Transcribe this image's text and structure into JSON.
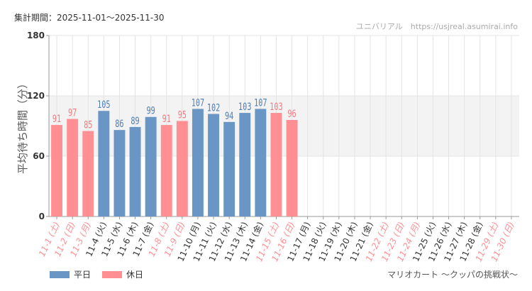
{
  "header": {
    "period_label": "集計期間：2025-11-01～2025-11-30"
  },
  "footer": {
    "attraction_name": "マリオカート ～クッパの挑戦状～"
  },
  "chart_data": {
    "type": "bar",
    "title": "",
    "watermark": "ユニバリアル　https://usjreal.asumirai.info",
    "ylabel": "平均待ち時間（分）",
    "xlabel": "",
    "ylim": [
      0,
      180
    ],
    "yticks": [
      0,
      60,
      120,
      180
    ],
    "shaded_band": [
      60,
      120
    ],
    "grid": true,
    "categories": [
      "11-1 (土)",
      "11-2 (日)",
      "11-3 (月)",
      "11-4 (火)",
      "11-5 (水)",
      "11-6 (木)",
      "11-7 (金)",
      "11-8 (土)",
      "11-9 (日)",
      "11-10 (月)",
      "11-11 (火)",
      "11-12 (水)",
      "11-13 (木)",
      "11-14 (金)",
      "11-15 (土)",
      "11-16 (日)",
      "11-17 (月)",
      "11-18 (火)",
      "11-19 (水)",
      "11-20 (木)",
      "11-21 (金)",
      "11-22 (土)",
      "11-23 (日)",
      "11-24 (月)",
      "11-25 (火)",
      "11-26 (水)",
      "11-27 (木)",
      "11-28 (金)",
      "11-29 (土)",
      "11-30 (日)"
    ],
    "day_types": [
      "holiday",
      "holiday",
      "holiday",
      "weekday",
      "weekday",
      "weekday",
      "weekday",
      "holiday",
      "holiday",
      "weekday",
      "weekday",
      "weekday",
      "weekday",
      "weekday",
      "holiday",
      "holiday",
      "weekday",
      "weekday",
      "weekday",
      "weekday",
      "weekday",
      "holiday",
      "holiday",
      "holiday",
      "weekday",
      "weekday",
      "weekday",
      "weekday",
      "holiday",
      "holiday"
    ],
    "values": [
      91,
      97,
      85,
      105,
      86,
      89,
      99,
      91,
      95,
      107,
      102,
      94,
      103,
      107,
      103,
      96,
      null,
      null,
      null,
      null,
      null,
      null,
      null,
      null,
      null,
      null,
      null,
      null,
      null,
      null
    ],
    "legend": [
      {
        "name": "平日",
        "type": "weekday",
        "color": "#6a96c6"
      },
      {
        "name": "休日",
        "type": "holiday",
        "color": "#ff8f93"
      }
    ],
    "colors": {
      "weekday_bar": "#6a96c6",
      "holiday_bar": "#ff8f93",
      "weekday_label": "#4d7eb3",
      "holiday_label": "#f07a80",
      "weekday_tick": "#333333",
      "holiday_tick": "#ff8f93",
      "band": "#f3f3f3",
      "grid": "#e4e4e4",
      "axis": "#999999"
    }
  }
}
